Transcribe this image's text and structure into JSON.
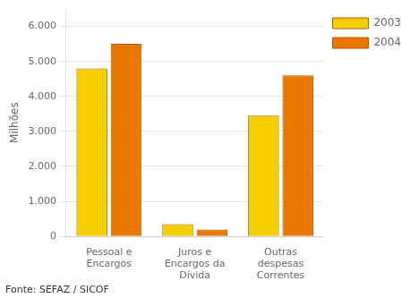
{
  "chart_data": {
    "type": "bar",
    "categories": [
      "Pessoal e\nEncargos",
      "Juros e\nEncargos da\nDívida",
      "Outras\ndespesas\nCorrentes"
    ],
    "series": [
      {
        "name": "2003",
        "color": "#F5CE00",
        "values": [
          4800,
          350,
          3450
        ]
      },
      {
        "name": "2004",
        "color": "#E87800",
        "values": [
          5500,
          200,
          4600
        ]
      }
    ],
    "ylabel": "Milhões",
    "annotations": [
      "Fonte: SEFAZ / SICOF"
    ],
    "ylim": [
      0,
      6500
    ],
    "yticks": [
      0,
      {
        "value": 1000,
        "label": "1.000"
      },
      {
        "value": 2000,
        "label": "2.000"
      },
      {
        "value": 3000,
        "label": "3.000"
      },
      {
        "value": 4000,
        "label": "4.000"
      },
      {
        "value": 5000,
        "label": "5.000"
      },
      {
        "value": 6000,
        "label": "6.000"
      }
    ],
    "grid": true,
    "legend": "right"
  }
}
